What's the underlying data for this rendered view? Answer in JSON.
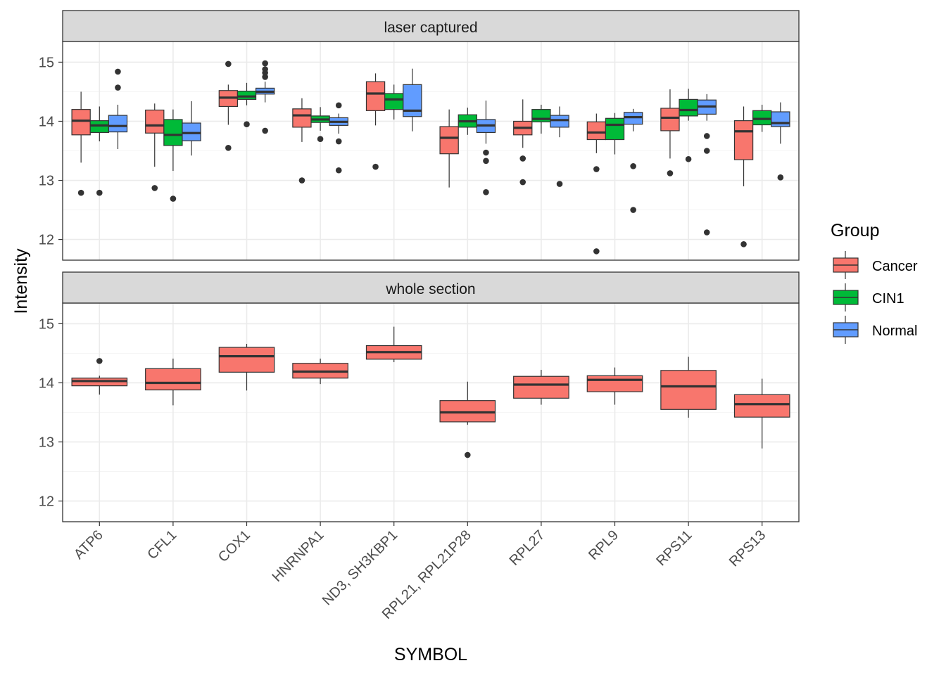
{
  "chart_data": {
    "type": "boxplot",
    "xlabel": "SYMBOL",
    "ylabel": "Intensity",
    "ylim": [
      11.65,
      15.35
    ],
    "yticks": [
      12,
      13,
      14,
      15
    ],
    "grid": true,
    "legend": {
      "title": "Group",
      "position": "right",
      "items": [
        {
          "name": "Cancer",
          "color": "#F8766D"
        },
        {
          "name": "CIN1",
          "color": "#00BA38"
        },
        {
          "name": "Normal",
          "color": "#619CFF"
        }
      ]
    },
    "categories": [
      "ATP6",
      "CFL1",
      "COX1",
      "HNRNPA1",
      "ND3, SH3KBP1",
      "RPL21, RPL21P28",
      "RPL27",
      "RPL9",
      "RPS11",
      "RPS13"
    ],
    "panels": [
      {
        "title": "laser captured",
        "series": [
          {
            "name": "Cancer",
            "boxes": [
              {
                "q1": 13.77,
                "median": 14.01,
                "q3": 14.2,
                "lower": 13.3,
                "upper": 14.5,
                "outliers": [
                  12.79
                ]
              },
              {
                "q1": 13.8,
                "median": 13.93,
                "q3": 14.19,
                "lower": 13.23,
                "upper": 14.3,
                "outliers": [
                  12.87
                ]
              },
              {
                "q1": 14.25,
                "median": 14.4,
                "q3": 14.52,
                "lower": 13.94,
                "upper": 14.62,
                "outliers": [
                  13.55,
                  14.97
                ]
              },
              {
                "q1": 13.9,
                "median": 14.1,
                "q3": 14.21,
                "lower": 13.65,
                "upper": 14.39,
                "outliers": [
                  13.0
                ]
              },
              {
                "q1": 14.18,
                "median": 14.47,
                "q3": 14.67,
                "lower": 13.93,
                "upper": 14.81,
                "outliers": [
                  13.23
                ]
              },
              {
                "q1": 13.45,
                "median": 13.72,
                "q3": 13.91,
                "lower": 12.88,
                "upper": 14.2,
                "outliers": []
              },
              {
                "q1": 13.77,
                "median": 13.89,
                "q3": 14.0,
                "lower": 13.55,
                "upper": 14.37,
                "outliers": [
                  13.37,
                  12.97
                ]
              },
              {
                "q1": 13.69,
                "median": 13.81,
                "q3": 13.99,
                "lower": 13.46,
                "upper": 14.13,
                "outliers": [
                  13.19,
                  11.8
                ]
              },
              {
                "q1": 13.84,
                "median": 14.06,
                "q3": 14.22,
                "lower": 13.37,
                "upper": 14.54,
                "outliers": [
                  13.12
                ]
              },
              {
                "q1": 13.35,
                "median": 13.83,
                "q3": 14.01,
                "lower": 12.9,
                "upper": 14.25,
                "outliers": [
                  11.92
                ]
              }
            ]
          },
          {
            "name": "CIN1",
            "boxes": [
              {
                "q1": 13.81,
                "median": 13.93,
                "q3": 14.01,
                "lower": 13.66,
                "upper": 14.25,
                "outliers": [
                  12.79
                ]
              },
              {
                "q1": 13.59,
                "median": 13.77,
                "q3": 14.03,
                "lower": 13.16,
                "upper": 14.2,
                "outliers": [
                  12.69
                ]
              },
              {
                "q1": 14.37,
                "median": 14.42,
                "q3": 14.51,
                "lower": 14.27,
                "upper": 14.65,
                "outliers": [
                  13.95
                ]
              },
              {
                "q1": 13.98,
                "median": 14.03,
                "q3": 14.09,
                "lower": 13.84,
                "upper": 14.24,
                "outliers": [
                  13.7
                ]
              },
              {
                "q1": 14.2,
                "median": 14.37,
                "q3": 14.47,
                "lower": 14.03,
                "upper": 14.62,
                "outliers": []
              },
              {
                "q1": 13.9,
                "median": 14.0,
                "q3": 14.11,
                "lower": 13.77,
                "upper": 14.23,
                "outliers": []
              },
              {
                "q1": 13.99,
                "median": 14.04,
                "q3": 14.2,
                "lower": 13.79,
                "upper": 14.28,
                "outliers": []
              },
              {
                "q1": 13.69,
                "median": 13.94,
                "q3": 14.05,
                "lower": 13.44,
                "upper": 14.14,
                "outliers": []
              },
              {
                "q1": 14.09,
                "median": 14.19,
                "q3": 14.37,
                "lower": 14.01,
                "upper": 14.55,
                "outliers": [
                  13.36
                ]
              },
              {
                "q1": 13.94,
                "median": 14.04,
                "q3": 14.18,
                "lower": 13.82,
                "upper": 14.28,
                "outliers": []
              }
            ]
          },
          {
            "name": "Normal",
            "boxes": [
              {
                "q1": 13.82,
                "median": 13.92,
                "q3": 14.1,
                "lower": 13.53,
                "upper": 14.28,
                "outliers": [
                  14.57,
                  14.84
                ]
              },
              {
                "q1": 13.67,
                "median": 13.8,
                "q3": 13.97,
                "lower": 13.42,
                "upper": 14.34,
                "outliers": []
              },
              {
                "q1": 14.46,
                "median": 14.5,
                "q3": 14.56,
                "lower": 14.32,
                "upper": 14.67,
                "outliers": [
                  13.84,
                  14.75,
                  14.82,
                  14.88,
                  14.98
                ]
              },
              {
                "q1": 13.93,
                "median": 13.99,
                "q3": 14.06,
                "lower": 13.79,
                "upper": 14.13,
                "outliers": [
                  14.27,
                  13.66,
                  13.17
                ]
              },
              {
                "q1": 14.08,
                "median": 14.18,
                "q3": 14.62,
                "lower": 13.83,
                "upper": 14.89,
                "outliers": []
              },
              {
                "q1": 13.81,
                "median": 13.93,
                "q3": 14.03,
                "lower": 13.62,
                "upper": 14.35,
                "outliers": [
                  13.47,
                  13.33,
                  12.8
                ]
              },
              {
                "q1": 13.9,
                "median": 14.02,
                "q3": 14.1,
                "lower": 13.73,
                "upper": 14.25,
                "outliers": [
                  12.94
                ]
              },
              {
                "q1": 13.95,
                "median": 14.07,
                "q3": 14.15,
                "lower": 13.83,
                "upper": 14.21,
                "outliers": [
                  13.24,
                  12.5
                ]
              },
              {
                "q1": 14.12,
                "median": 14.25,
                "q3": 14.36,
                "lower": 14.01,
                "upper": 14.46,
                "outliers": [
                  13.75,
                  13.5,
                  12.12
                ]
              },
              {
                "q1": 13.91,
                "median": 13.97,
                "q3": 14.16,
                "lower": 13.62,
                "upper": 14.32,
                "outliers": [
                  13.05
                ]
              }
            ]
          }
        ]
      },
      {
        "title": "whole section",
        "series": [
          {
            "name": "Cancer",
            "boxes": [
              {
                "q1": 13.95,
                "median": 14.03,
                "q3": 14.08,
                "lower": 13.8,
                "upper": 14.12,
                "outliers": [
                  14.37
                ]
              },
              {
                "q1": 13.88,
                "median": 14.0,
                "q3": 14.24,
                "lower": 13.62,
                "upper": 14.41,
                "outliers": []
              },
              {
                "q1": 14.18,
                "median": 14.45,
                "q3": 14.6,
                "lower": 13.87,
                "upper": 14.66,
                "outliers": []
              },
              {
                "q1": 14.08,
                "median": 14.19,
                "q3": 14.33,
                "lower": 13.98,
                "upper": 14.41,
                "outliers": []
              },
              {
                "q1": 14.4,
                "median": 14.52,
                "q3": 14.63,
                "lower": 14.35,
                "upper": 14.95,
                "outliers": []
              },
              {
                "q1": 13.34,
                "median": 13.5,
                "q3": 13.7,
                "lower": 13.29,
                "upper": 14.02,
                "outliers": [
                  12.78
                ]
              },
              {
                "q1": 13.74,
                "median": 13.97,
                "q3": 14.11,
                "lower": 13.63,
                "upper": 14.22,
                "outliers": []
              },
              {
                "q1": 13.85,
                "median": 14.05,
                "q3": 14.12,
                "lower": 13.63,
                "upper": 14.26,
                "outliers": []
              },
              {
                "q1": 13.55,
                "median": 13.94,
                "q3": 14.21,
                "lower": 13.41,
                "upper": 14.44,
                "outliers": []
              },
              {
                "q1": 13.42,
                "median": 13.64,
                "q3": 13.8,
                "lower": 12.89,
                "upper": 14.07,
                "outliers": []
              }
            ]
          }
        ]
      }
    ]
  }
}
